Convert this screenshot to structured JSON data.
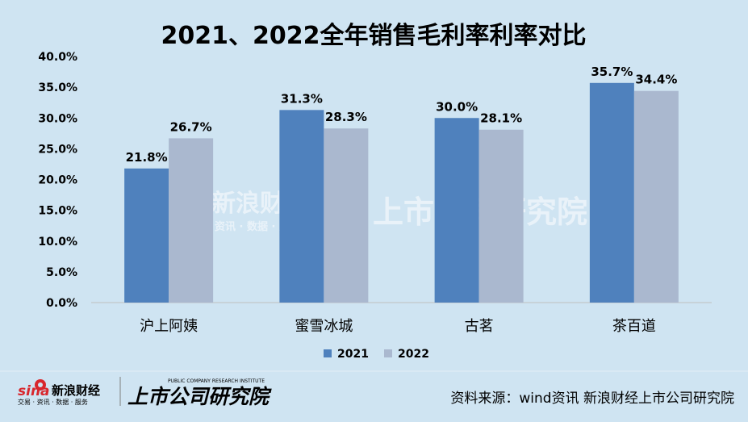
{
  "chart_data": {
    "type": "bar",
    "title": "2021、2022全年销售毛利率利率对比",
    "categories": [
      "沪上阿姨",
      "蜜雪冰城",
      "古茗",
      "茶百道"
    ],
    "series": [
      {
        "name": "2021",
        "values": [
          21.8,
          31.3,
          30.0,
          35.7
        ],
        "labels": [
          "21.8%",
          "31.3%",
          "30.0%",
          "35.7%"
        ],
        "color": "#4f81bd"
      },
      {
        "name": "2022",
        "values": [
          26.7,
          28.3,
          28.1,
          34.4
        ],
        "labels": [
          "26.7%",
          "28.3%",
          "28.1%",
          "34.4%"
        ],
        "color": "#aab8cf"
      }
    ],
    "ylim": [
      0,
      40
    ],
    "yticks": [
      "0.0%",
      "5.0%",
      "10.0%",
      "15.0%",
      "20.0%",
      "25.0%",
      "30.0%",
      "35.0%",
      "40.0%"
    ],
    "grid": false,
    "legend_position": "bottom"
  },
  "footer": {
    "source": "资料来源：wind资讯 新浪财经上市公司研究院",
    "logo_sina": "sina",
    "logo_cn": "新浪财经",
    "logo_sub": "交易 · 资讯 · 数据 · 服务",
    "brand": "上市公司研究院",
    "brand_en": "PUBLIC COMPANY RESEARCH INSTITUTE"
  },
  "watermark": {
    "left": "新浪财经",
    "left_sub": "资讯 · 数据 · 服务",
    "right": "上市公司研究院"
  },
  "colors": {
    "background": "#cfe4f2",
    "bar_2021": "#4f81bd",
    "bar_2022": "#aab8cf",
    "logo_red": "#d8272d"
  }
}
